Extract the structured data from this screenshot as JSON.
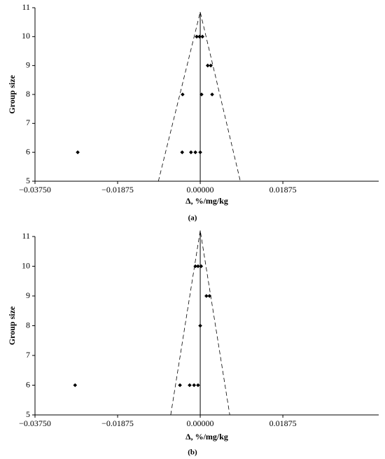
{
  "chart_data": [
    {
      "type": "scatter",
      "caption": "(a)",
      "x_label": "Δ, %/mg/kg",
      "y_label": "Group size",
      "x": [
        -0.0008,
        -0.00016,
        0.0005,
        0.0017,
        0.0024,
        -0.004,
        0.0003,
        0.0027,
        -0.0278,
        -0.0041,
        -0.0021,
        -0.0011,
        0
      ],
      "y": [
        10,
        10,
        10,
        9,
        9,
        8,
        8,
        8,
        6,
        6,
        6,
        6,
        6
      ],
      "color": "#000000",
      "funnel": {
        "x": [
          -0.0095,
          0,
          0.0091
        ],
        "y": [
          5,
          10.85,
          5
        ]
      },
      "center_line": {
        "x": [
          0,
          0
        ],
        "y": [
          5,
          10.85
        ]
      },
      "xlim": [
        -0.0375,
        0.0405
      ],
      "ylim": [
        5,
        11
      ],
      "xticks": [
        {
          "value": -0.0375,
          "label": "−0.03750"
        },
        {
          "value": -0.01875,
          "label": "−0.01875"
        },
        {
          "value": 0,
          "label": "0.00000"
        },
        {
          "value": 0.01875,
          "label": "0.01875"
        }
      ],
      "yticks": [
        5,
        6,
        7,
        8,
        9,
        10,
        11
      ]
    },
    {
      "type": "scatter",
      "caption": "(b)",
      "x_label": "Δ, %/mg/kg",
      "y_label": "Group size",
      "x": [
        -0.0011,
        -0.0005,
        0.0002,
        0.0014,
        0.0021,
        0,
        -0.0284,
        -0.0046,
        -0.0024,
        -0.0014,
        -0.0005
      ],
      "y": [
        10,
        10,
        10,
        9,
        9,
        8,
        6,
        6,
        6,
        6,
        6
      ],
      "color": "#000000",
      "funnel": {
        "x": [
          -0.0067,
          0,
          0.0067
        ],
        "y": [
          5,
          11.2,
          5
        ]
      },
      "center_line": {
        "x": [
          0,
          0
        ],
        "y": [
          5,
          11.2
        ]
      },
      "xlim": [
        -0.0375,
        0.0405
      ],
      "ylim": [
        5,
        11
      ],
      "xticks": [
        {
          "value": -0.0375,
          "label": "−0.03750"
        },
        {
          "value": -0.01875,
          "label": "−0.01875"
        },
        {
          "value": 0,
          "label": "0.00000"
        },
        {
          "value": 0.01875,
          "label": "0.01875"
        }
      ],
      "yticks": [
        5,
        6,
        7,
        8,
        9,
        10,
        11
      ]
    }
  ]
}
